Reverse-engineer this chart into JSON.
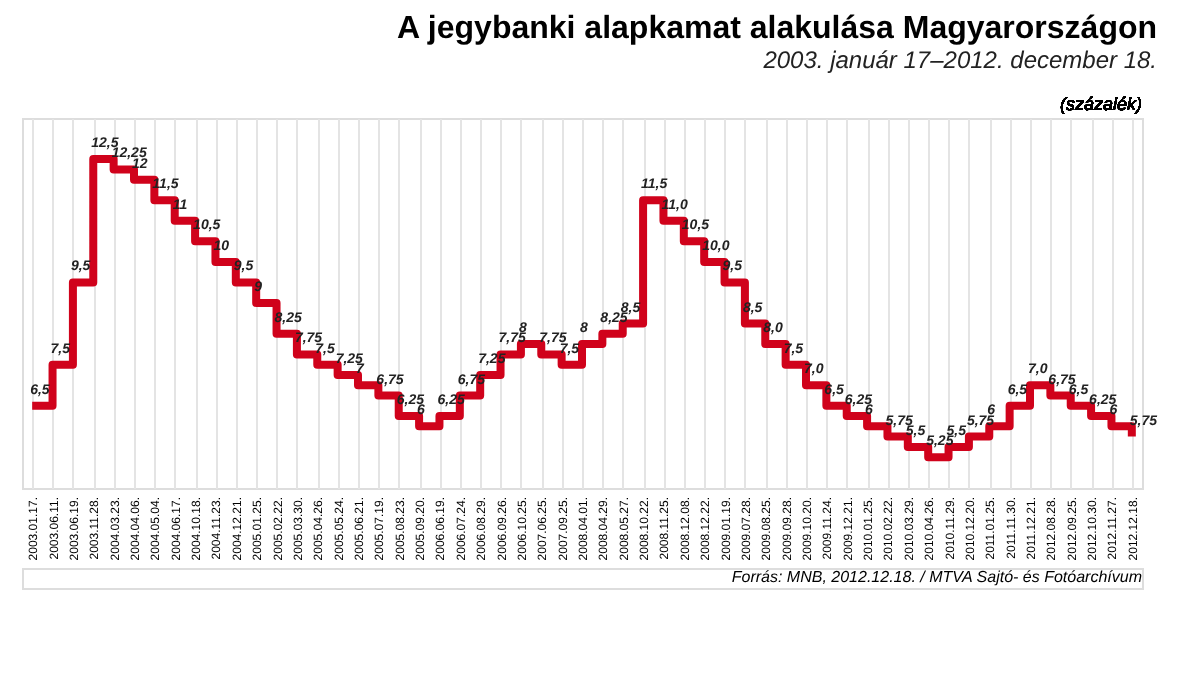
{
  "chart_data": {
    "type": "step",
    "title": "A jegybanki alapkamat alakulása Magyarországon",
    "subtitle": "2003. január 17–2012. december 18.",
    "ylabel": "(százalék)",
    "categories": [
      "2003.01.17.",
      "2003.06.11.",
      "2003.06.19.",
      "2003.11.28.",
      "2004.03.23.",
      "2004.04.06.",
      "2004.05.04.",
      "2004.06.17.",
      "2004.10.18.",
      "2004.11.23.",
      "2004.12.21.",
      "2005.01.25.",
      "2005.02.22.",
      "2005.03.30.",
      "2005.04.26.",
      "2005.05.24.",
      "2005.06.21.",
      "2005.07.19.",
      "2005.08.23.",
      "2005.09.20.",
      "2006.06.19.",
      "2006.07.24.",
      "2006.08.29.",
      "2006.09.26.",
      "2006.10.25.",
      "2007.06.25.",
      "2007.09.25.",
      "2008.04.01.",
      "2008.04.29.",
      "2008.05.27.",
      "2008.10.22.",
      "2008.11.25.",
      "2008.12.08.",
      "2008.12.22.",
      "2009.01.19.",
      "2009.07.28.",
      "2009.08.25.",
      "2009.09.28.",
      "2009.10.20.",
      "2009.11.24.",
      "2009.12.21.",
      "2010.01.25.",
      "2010.02.22.",
      "2010.03.29.",
      "2010.04.26.",
      "2010.11.29.",
      "2010.12.20.",
      "2011.01.25.",
      "2011.11.30.",
      "2011.12.21.",
      "2012.08.28.",
      "2012.09.25.",
      "2012.10.30.",
      "2012.11.27.",
      "2012.12.18."
    ],
    "values": [
      6.5,
      7.5,
      9.5,
      12.5,
      12.25,
      12,
      11.5,
      11,
      10.5,
      10,
      9.5,
      9,
      8.25,
      7.75,
      7.5,
      7.25,
      7,
      6.75,
      6.25,
      6,
      6.25,
      6.75,
      7.25,
      7.75,
      8,
      7.75,
      7.5,
      8,
      8.25,
      8.5,
      11.5,
      11,
      10.5,
      10,
      9.5,
      8.5,
      8,
      7.5,
      7,
      6.5,
      6.25,
      6,
      5.75,
      5.5,
      5.25,
      5.5,
      5.75,
      6,
      6.5,
      7,
      6.75,
      6.5,
      6.25,
      6,
      5.75
    ],
    "value_labels": [
      "6,5",
      "7,5",
      "9,5",
      "12,5",
      "12,25",
      "12",
      "11,5",
      "11",
      "10,5",
      "10",
      "9,5",
      "9",
      "8,25",
      "7,75",
      "7,5",
      "7,25",
      "7",
      "6,75",
      "6,25",
      "6",
      "6,25",
      "6,75",
      "7,25",
      "7,75",
      "8",
      "7,75",
      "7,5",
      "8",
      "8,25",
      "8,5",
      "11,5",
      "11,0",
      "10,5",
      "10,0",
      "9,5",
      "8,5",
      "8,0",
      "7,5",
      "7,0",
      "6,5",
      "6,25",
      "6",
      "5,75",
      "5,5",
      "5,25",
      "5,5",
      "5,75",
      "6",
      "6,5",
      "7,0",
      "6,75",
      "6,5",
      "6,25",
      "6",
      "5,75"
    ],
    "color": "#d0021b",
    "ylim": [
      4.5,
      13.5
    ],
    "tick_labels": "x",
    "grid": "x",
    "line_style": "solid",
    "marker": "none",
    "annotations": [
      "Forrás: MNB, 2012.12.18. / MTVA Sajtó- és Fotóarchívum"
    ]
  }
}
